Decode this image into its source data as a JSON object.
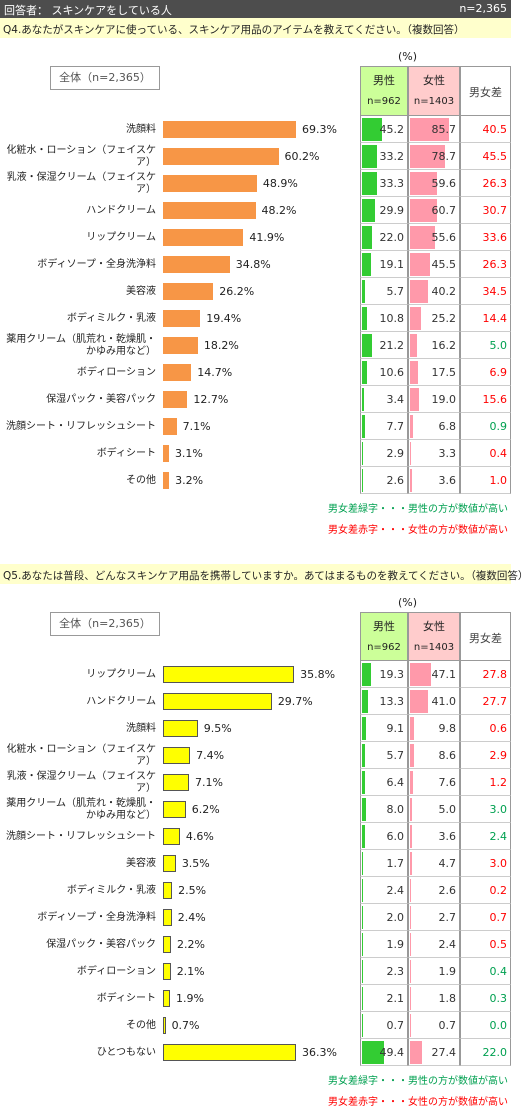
{
  "header": {
    "respondent": "回答者： スキンケアをしている人",
    "n": "n=2,365"
  },
  "chart_data": [
    {
      "type": "bar",
      "orientation": "horizontal",
      "question": "Q4.あなたがスキンケアに使っている、スキンケア用品のアイテムを教えてください。（複数回答）",
      "unit_label": "(%)",
      "categories": [
        "洗顔料",
        "化粧水・ローション（フェイスケア）",
        "乳液・保湿クリーム（フェイスケア）",
        "ハンドクリーム",
        "リップクリーム",
        "ボディソープ・全身洗浄料",
        "美容液",
        "ボディミルク・乳液",
        "薬用クリーム（肌荒れ・乾燥肌・\nかゆみ用など）",
        "ボディローション",
        "保湿パック・美容パック",
        "洗顔シート・リフレッシュシート",
        "ボディシート",
        "その他"
      ],
      "series": [
        {
          "name": "全体（n=2,365）",
          "color": "#f79646",
          "values": [
            69.3,
            60.2,
            48.9,
            48.2,
            41.9,
            34.8,
            26.2,
            19.4,
            18.2,
            14.7,
            12.7,
            7.1,
            3.1,
            3.2
          ],
          "value_labels": [
            "69.3%",
            "60.2%",
            "48.9%",
            "48.2%",
            "41.9%",
            "34.8%",
            "26.2%",
            "19.4%",
            "18.2%",
            "14.7%",
            "12.7%",
            "7.1%",
            "3.1%",
            "3.2%"
          ]
        },
        {
          "name": "男性",
          "n_label": "n=962",
          "color": "#33cc33",
          "header_color": "#ccff99",
          "values": [
            45.2,
            33.2,
            33.3,
            29.9,
            22.0,
            19.1,
            5.7,
            10.8,
            21.2,
            10.6,
            3.4,
            7.7,
            2.9,
            2.6
          ],
          "value_labels": [
            "45.2",
            "33.2",
            "33.3",
            "29.9",
            "22.0",
            "19.1",
            "5.7",
            "10.8",
            "21.2",
            "10.6",
            "3.4",
            "7.7",
            "2.9",
            "2.6"
          ]
        },
        {
          "name": "女性",
          "n_label": "n=1403",
          "color": "#ff99aa",
          "header_color": "#ffcccc",
          "values": [
            85.7,
            78.7,
            59.6,
            60.7,
            55.6,
            45.5,
            40.2,
            25.2,
            16.2,
            17.5,
            19.0,
            6.8,
            3.3,
            3.6
          ],
          "value_labels": [
            "85.7",
            "78.7",
            "59.6",
            "60.7",
            "55.6",
            "45.5",
            "40.2",
            "25.2",
            "16.2",
            "17.5",
            "19.0",
            "6.8",
            "3.3",
            "3.6"
          ]
        },
        {
          "name": "男女差",
          "values": [
            40.5,
            45.5,
            26.3,
            30.7,
            33.6,
            26.3,
            34.5,
            14.4,
            5.0,
            6.9,
            15.6,
            0.9,
            0.4,
            1.0
          ],
          "value_labels": [
            "40.5",
            "45.5",
            "26.3",
            "30.7",
            "33.6",
            "26.3",
            "34.5",
            "14.4",
            "5.0",
            "6.9",
            "15.6",
            "0.9",
            "0.4",
            "1.0"
          ]
        }
      ],
      "diff_colors": {
        "male_higher": "#00a050",
        "female_higher": "#ff0000"
      },
      "notes": [
        {
          "text": "男女差緑字・・・男性の方が数値が高い",
          "color": "#00a050"
        },
        {
          "text": "男女差赤字・・・女性の方が数値が高い",
          "color": "#ff0000"
        }
      ]
    },
    {
      "type": "bar",
      "orientation": "horizontal",
      "question": "Q5.あなたは普段、どんなスキンケア用品を携帯していますか。あてはまるものを教えてください。（複数回答）",
      "unit_label": "(%)",
      "categories": [
        "リップクリーム",
        "ハンドクリーム",
        "洗顔料",
        "化粧水・ローション（フェイスケア）",
        "乳液・保湿クリーム（フェイスケア）",
        "薬用クリーム（肌荒れ・乾燥肌・\nかゆみ用など）",
        "洗顔シート・リフレッシュシート",
        "美容液",
        "ボディミルク・乳液",
        "ボディソープ・全身洗浄料",
        "保湿パック・美容パック",
        "ボディローション",
        "ボディシート",
        "その他",
        "ひとつもない"
      ],
      "series": [
        {
          "name": "全体（n=2,365）",
          "color": "#ffff00",
          "border_color": "#555555",
          "values": [
            35.8,
            29.7,
            9.5,
            7.4,
            7.1,
            6.2,
            4.6,
            3.5,
            2.5,
            2.4,
            2.2,
            2.1,
            1.9,
            0.7,
            36.3
          ],
          "value_labels": [
            "35.8%",
            "29.7%",
            "9.5%",
            "7.4%",
            "7.1%",
            "6.2%",
            "4.6%",
            "3.5%",
            "2.5%",
            "2.4%",
            "2.2%",
            "2.1%",
            "1.9%",
            "0.7%",
            "36.3%"
          ]
        },
        {
          "name": "男性",
          "n_label": "n=962",
          "color": "#33cc33",
          "header_color": "#ccff99",
          "values": [
            19.3,
            13.3,
            9.1,
            5.7,
            6.4,
            8.0,
            6.0,
            1.7,
            2.4,
            2.0,
            1.9,
            2.3,
            2.1,
            0.7,
            49.4
          ],
          "value_labels": [
            "19.3",
            "13.3",
            "9.1",
            "5.7",
            "6.4",
            "8.0",
            "6.0",
            "1.7",
            "2.4",
            "2.0",
            "1.9",
            "2.3",
            "2.1",
            "0.7",
            "49.4"
          ]
        },
        {
          "name": "女性",
          "n_label": "n=1403",
          "color": "#ff99aa",
          "header_color": "#ffcccc",
          "values": [
            47.1,
            41.0,
            9.8,
            8.6,
            7.6,
            5.0,
            3.6,
            4.7,
            2.6,
            2.7,
            2.4,
            1.9,
            1.8,
            0.7,
            27.4
          ],
          "value_labels": [
            "47.1",
            "41.0",
            "9.8",
            "8.6",
            "7.6",
            "5.0",
            "3.6",
            "4.7",
            "2.6",
            "2.7",
            "2.4",
            "1.9",
            "1.8",
            "0.7",
            "27.4"
          ]
        },
        {
          "name": "男女差",
          "values": [
            27.8,
            27.7,
            0.6,
            2.9,
            1.2,
            3.0,
            2.4,
            3.0,
            0.2,
            0.7,
            0.5,
            0.4,
            0.3,
            0.0,
            22.0
          ],
          "value_labels": [
            "27.8",
            "27.7",
            "0.6",
            "2.9",
            "1.2",
            "3.0",
            "2.4",
            "3.0",
            "0.2",
            "0.7",
            "0.5",
            "0.4",
            "0.3",
            "0.0",
            "22.0"
          ]
        }
      ],
      "diff_colors": {
        "male_higher": "#00a050",
        "female_higher": "#ff0000"
      },
      "notes": [
        {
          "text": "男女差緑字・・・男性の方が数値が高い",
          "color": "#00a050"
        },
        {
          "text": "男女差赤字・・・女性の方が数値が高い",
          "color": "#ff0000"
        }
      ]
    }
  ]
}
